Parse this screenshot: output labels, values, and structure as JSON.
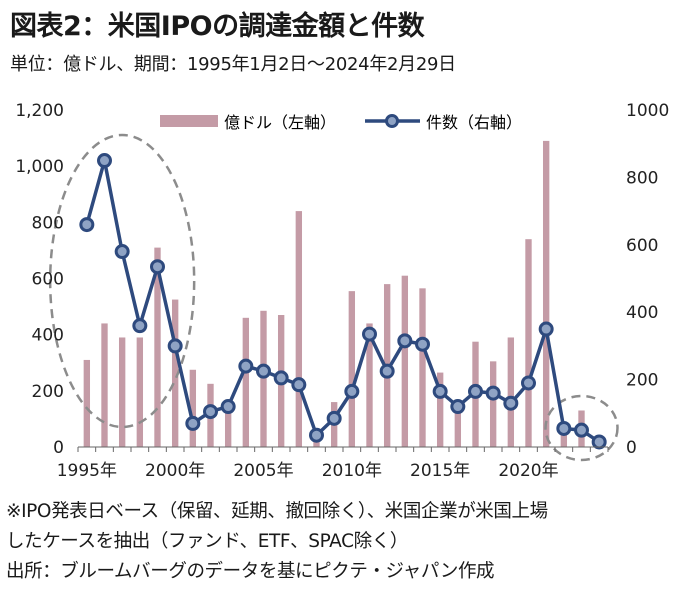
{
  "title": "図表2：米国IPOの調達金額と件数",
  "subtitle": "単位：億ドル、期間：1995年1月2日～2024年2月29日",
  "notes": [
    "※IPO発表日ベース（保留、延期、撤回除く）、米国企業が米国上場",
    "したケースを抽出（ファンド、ETF、SPAC除く）",
    "出所：ブルームバーグのデータを基にピクテ・ジャパン作成"
  ],
  "colors": {
    "bar": "#c49ba6",
    "line": "#2e4a7e",
    "marker_fill": "#8fa3c4",
    "ellipse": "#8c8c8c"
  },
  "chart_data": {
    "type": "bar+line",
    "x": [
      1995,
      1996,
      1997,
      1998,
      1999,
      2000,
      2001,
      2002,
      2003,
      2004,
      2005,
      2006,
      2007,
      2008,
      2009,
      2010,
      2011,
      2012,
      2013,
      2014,
      2015,
      2016,
      2017,
      2018,
      2019,
      2020,
      2021,
      2022,
      2023,
      2024
    ],
    "x_tick_labels": [
      "1995年",
      "2000年",
      "2005年",
      "2010年",
      "2015年",
      "2020年"
    ],
    "x_tick_values": [
      1995,
      2000,
      2005,
      2010,
      2015,
      2020
    ],
    "series": [
      {
        "name": "億ドル（左軸）",
        "type": "bar",
        "axis": "left",
        "values": [
          310,
          440,
          390,
          390,
          710,
          525,
          275,
          225,
          120,
          460,
          485,
          470,
          840,
          55,
          160,
          555,
          440,
          580,
          610,
          565,
          265,
          165,
          375,
          305,
          390,
          740,
          1090,
          80,
          130,
          20
        ]
      },
      {
        "name": "件数（右軸）",
        "type": "line",
        "axis": "right",
        "values": [
          660,
          850,
          580,
          360,
          535,
          300,
          70,
          105,
          120,
          240,
          225,
          205,
          185,
          35,
          85,
          165,
          335,
          225,
          315,
          305,
          165,
          120,
          165,
          160,
          130,
          190,
          350,
          55,
          50,
          15
        ]
      }
    ],
    "left_axis": {
      "range": [
        0,
        1200
      ],
      "ticks": [
        0,
        200,
        400,
        600,
        800,
        1000,
        1200
      ],
      "tick_labels": [
        "0",
        "200",
        "400",
        "600",
        "800",
        "1,000",
        "1,200"
      ]
    },
    "right_axis": {
      "range": [
        0,
        1000
      ],
      "ticks": [
        0,
        200,
        400,
        600,
        800,
        1000
      ],
      "tick_labels": [
        "0",
        "200",
        "400",
        "600",
        "800",
        "1000"
      ]
    },
    "grid": false,
    "legend_position": "top",
    "highlight_regions": [
      "1995–1999",
      "2022–2024"
    ]
  }
}
